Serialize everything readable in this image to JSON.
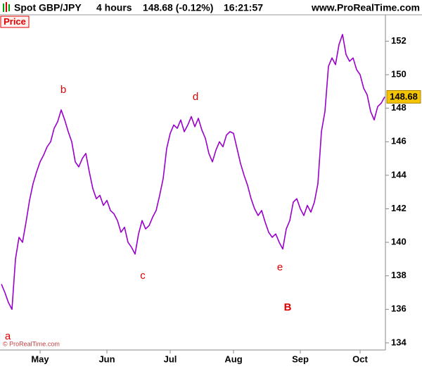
{
  "chart_data": {
    "type": "line",
    "title": "Spot GBP/JPY",
    "interval": "4 hours",
    "quote": "148.68 (-0.12%)",
    "time": "16:21:57",
    "source": "www.ProRealTime.com",
    "panel_label": "Price",
    "copyright": "© ProRealTime.com",
    "last_price_label": "148.68",
    "annotations": [
      "a",
      "b",
      "c",
      "d",
      "e",
      "B"
    ],
    "categories": [
      null,
      null,
      null,
      null,
      null,
      null,
      null,
      null,
      null,
      null,
      null,
      "May",
      null,
      null,
      null,
      null,
      null,
      null,
      null,
      null,
      null,
      null,
      null,
      null,
      null,
      null,
      null,
      null,
      null,
      null,
      "Jun",
      null,
      null,
      null,
      null,
      null,
      null,
      null,
      null,
      null,
      null,
      null,
      null,
      null,
      null,
      null,
      null,
      null,
      "Jul",
      null,
      null,
      null,
      null,
      null,
      null,
      null,
      null,
      null,
      null,
      null,
      null,
      null,
      null,
      null,
      null,
      null,
      "Aug",
      null,
      null,
      null,
      null,
      null,
      null,
      null,
      null,
      null,
      null,
      null,
      null,
      null,
      null,
      null,
      null,
      null,
      null,
      "Sep",
      null,
      null,
      null,
      null,
      null,
      null,
      null,
      null,
      null,
      null,
      null,
      null,
      null,
      null,
      null,
      null,
      "Oct",
      null,
      null,
      null,
      null,
      null,
      null,
      null
    ],
    "series": [
      {
        "name": "Spot GBP/JPY",
        "color": "#9900cc",
        "values": [
          137.5,
          137.0,
          136.4,
          136.0,
          139.0,
          140.3,
          140.0,
          141.2,
          142.5,
          143.5,
          144.2,
          144.8,
          145.2,
          145.7,
          146.0,
          146.8,
          147.2,
          147.9,
          147.3,
          146.6,
          146.0,
          144.8,
          144.5,
          145.0,
          145.3,
          144.2,
          143.2,
          142.6,
          142.8,
          142.2,
          142.5,
          141.9,
          141.7,
          141.3,
          140.6,
          140.9,
          140.0,
          139.7,
          139.3,
          140.5,
          141.3,
          140.8,
          141.0,
          141.5,
          141.9,
          142.8,
          143.8,
          145.6,
          146.5,
          147.0,
          146.8,
          147.3,
          146.6,
          147.0,
          147.5,
          146.9,
          147.4,
          146.7,
          146.2,
          145.3,
          144.8,
          145.5,
          146.0,
          145.7,
          146.4,
          146.6,
          146.5,
          145.6,
          144.7,
          144.0,
          143.4,
          142.6,
          142.0,
          141.6,
          141.9,
          141.2,
          140.6,
          140.3,
          140.5,
          140.0,
          139.6,
          140.8,
          141.3,
          142.4,
          142.6,
          142.0,
          141.6,
          142.2,
          141.8,
          142.4,
          143.5,
          146.6,
          147.8,
          150.5,
          151.0,
          150.6,
          151.8,
          152.4,
          151.2,
          150.8,
          151.0,
          150.3,
          150.0,
          149.2,
          148.8,
          147.8,
          147.3,
          148.1,
          148.3,
          148.68
        ]
      }
    ],
    "ylim": [
      133.45,
      153.7
    ],
    "yticks": [
      134,
      136,
      138,
      140,
      142,
      144,
      146,
      148,
      150,
      152
    ],
    "grid": false
  }
}
